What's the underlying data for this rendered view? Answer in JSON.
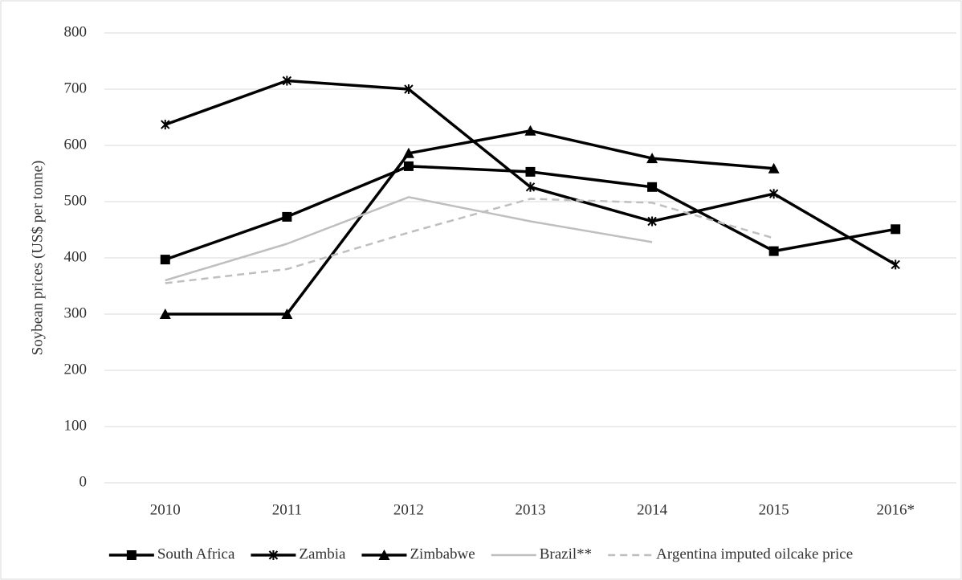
{
  "chart_data": {
    "type": "line",
    "y_label": "Soybean prices (US$ per tonne)",
    "categories": [
      "2010",
      "2011",
      "2012",
      "2013",
      "2014",
      "2015",
      "2016*"
    ],
    "ylim": [
      0,
      800
    ],
    "yticks": [
      0,
      100,
      200,
      300,
      400,
      500,
      600,
      700,
      800
    ],
    "grid": true,
    "legend": "bottom",
    "series": [
      {
        "name": "South Africa",
        "color": "#000000",
        "marker": "square",
        "dashed": false,
        "values": [
          397,
          473,
          563,
          553,
          526,
          412,
          451
        ]
      },
      {
        "name": "Zambia",
        "color": "#000000",
        "marker": "star",
        "dashed": false,
        "values": [
          637,
          715,
          700,
          526,
          465,
          514,
          388
        ]
      },
      {
        "name": "Zimbabwe",
        "color": "#000000",
        "marker": "triangle",
        "dashed": false,
        "values": [
          300,
          300,
          586,
          626,
          577,
          559,
          null
        ]
      },
      {
        "name": "Brazil**",
        "color": "#bfbfbf",
        "marker": "none",
        "dashed": false,
        "values": [
          360,
          425,
          508,
          465,
          428,
          null,
          null
        ]
      },
      {
        "name": "Argentina imputed oilcake price",
        "color": "#bfbfbf",
        "marker": "none",
        "dashed": true,
        "values": [
          355,
          380,
          445,
          505,
          498,
          435,
          null
        ]
      }
    ]
  }
}
